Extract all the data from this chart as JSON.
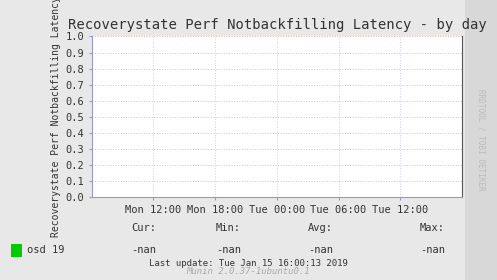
{
  "title": "Recoverystate Perf Notbackfilling Latency - by day",
  "ylabel": "Recoverystate Perf Notbackfilling Latency",
  "right_label": "RRDTOOL / TOBI OETIKER",
  "footer": "Munin 2.0.37-1ubuntu0.1",
  "last_update": "Last update: Tue Jan 15 16:00:13 2019",
  "legend_label": "osd 19",
  "legend_color": "#00cc00",
  "cur_label": "Cur:",
  "cur_value": "-nan",
  "min_label": "Min:",
  "min_value": "-nan",
  "avg_label": "Avg:",
  "avg_value": "-nan",
  "max_label": "Max:",
  "max_value": "-nan",
  "xtick_labels": [
    "Mon 12:00",
    "Mon 18:00",
    "Tue 00:00",
    "Tue 06:00",
    "Tue 12:00"
  ],
  "xtick_positions": [
    0.166,
    0.333,
    0.5,
    0.666,
    0.833
  ],
  "ytick_labels": [
    "0.0",
    "0.1",
    "0.2",
    "0.3",
    "0.4",
    "0.5",
    "0.6",
    "0.7",
    "0.8",
    "0.9",
    "1.0"
  ],
  "ytick_values": [
    0.0,
    0.1,
    0.2,
    0.3,
    0.4,
    0.5,
    0.6,
    0.7,
    0.8,
    0.9,
    1.0
  ],
  "ylim": [
    0.0,
    1.0
  ],
  "bg_color": "#e8e8e8",
  "plot_bg_color": "#ffffff",
  "grid_color_h": "#ffaaaa",
  "grid_color_v": "#ccccff",
  "border_color_lr": "#9999cc",
  "border_color_tb": "#cccccc",
  "title_fontsize": 10,
  "axis_label_fontsize": 7,
  "tick_fontsize": 7.5,
  "footer_fontsize": 6.5,
  "right_label_color": "#bbbbbb",
  "right_bg_color": "#d8d8d8",
  "text_color": "#333333"
}
